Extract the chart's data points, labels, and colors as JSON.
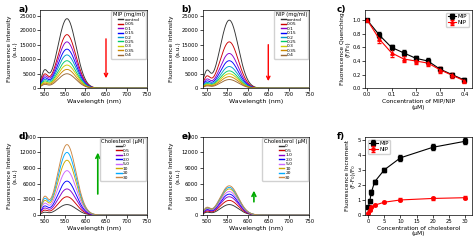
{
  "panel_labels": [
    "a)",
    "b)",
    "c)",
    "d)",
    "e)",
    "f)"
  ],
  "mip_conc_labels": [
    "control",
    "0.05",
    "0.1",
    "0.15",
    "0.2",
    "0.25",
    "0.3",
    "0.35",
    "0.4"
  ],
  "mip_colors": [
    "#333333",
    "#cc0000",
    "#8800cc",
    "#0000ff",
    "#0099cc",
    "#00cc66",
    "#cccc00",
    "#cc8800",
    "#996633"
  ],
  "chol_conc_labels": [
    "0",
    "0.5",
    "1.0",
    "2.0",
    "5.0",
    "10",
    "20",
    "30"
  ],
  "chol_colors": [
    "#333333",
    "#cc0000",
    "#8800cc",
    "#0000ff",
    "#cc66ff",
    "#ccaa00",
    "#00aaff",
    "#cc8844"
  ],
  "mip_peak_heights": [
    24000,
    18500,
    16000,
    13500,
    11500,
    9500,
    8000,
    6500,
    5000
  ],
  "nip_peak_heights": [
    23500,
    16000,
    12000,
    9500,
    7500,
    6000,
    5000,
    4000,
    3000
  ],
  "mip_chol_peak_heights": [
    2000,
    3500,
    5000,
    6500,
    8500,
    10500,
    12000,
    13500
  ],
  "nip_chol_peak_heights": [
    2000,
    2800,
    3500,
    4000,
    4500,
    5000,
    5300,
    5600
  ],
  "quenching_conc": [
    0.0,
    0.05,
    0.1,
    0.15,
    0.2,
    0.25,
    0.3,
    0.35,
    0.4
  ],
  "mip_quenching": [
    1.0,
    0.78,
    0.6,
    0.52,
    0.44,
    0.4,
    0.28,
    0.2,
    0.12
  ],
  "nip_quenching": [
    1.0,
    0.72,
    0.52,
    0.43,
    0.4,
    0.37,
    0.27,
    0.19,
    0.11
  ],
  "mip_quenching_err": [
    0.0,
    0.04,
    0.04,
    0.04,
    0.04,
    0.04,
    0.03,
    0.03,
    0.03
  ],
  "nip_quenching_err": [
    0.0,
    0.06,
    0.06,
    0.05,
    0.05,
    0.04,
    0.04,
    0.04,
    0.03
  ],
  "chol_conc_x": [
    0,
    0.5,
    1.0,
    2.0,
    5.0,
    10,
    20,
    30
  ],
  "mip_increment": [
    0.5,
    0.9,
    1.5,
    2.2,
    3.0,
    3.8,
    4.5,
    4.9
  ],
  "nip_increment": [
    0.1,
    0.3,
    0.5,
    0.65,
    0.85,
    1.0,
    1.1,
    1.15
  ],
  "mip_increment_err": [
    0.1,
    0.1,
    0.15,
    0.15,
    0.15,
    0.2,
    0.2,
    0.2
  ],
  "nip_increment_err": [
    0.05,
    0.05,
    0.06,
    0.06,
    0.08,
    0.1,
    0.1,
    0.1
  ],
  "background_color": "#ffffff"
}
